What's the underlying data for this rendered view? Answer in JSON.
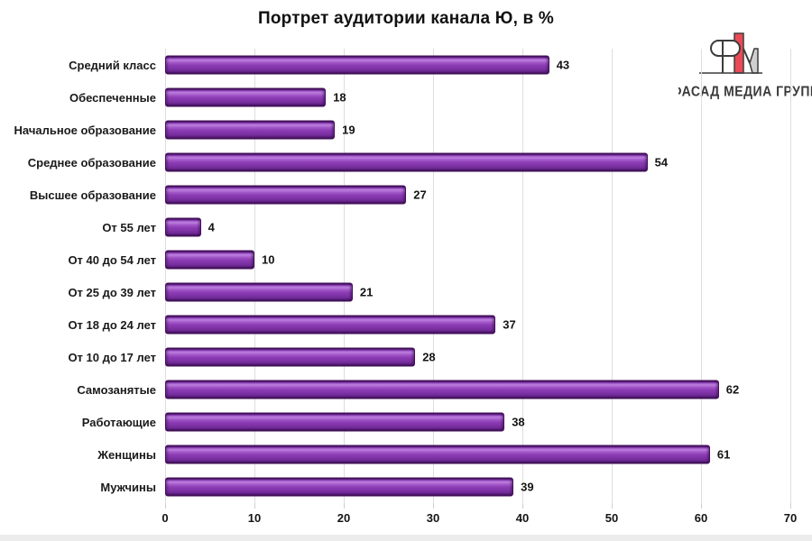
{
  "chart": {
    "title": "Портрет аудитории канала Ю, в %"
  },
  "logo": {
    "text": "ФАСАД МЕДИА ГРУПП",
    "mark_icon": "fm-monogram-icon",
    "red": "#ea4a56",
    "gray": "#cfcfcf",
    "outline": "#3c3c3c"
  },
  "colors": {
    "bar_main": "#8c3cb4",
    "bar_highlight": "#bd7fdd",
    "bar_dark": "#3f1157",
    "gridline": "#dedede",
    "text": "#1a1a1a"
  },
  "chart_data": {
    "type": "bar",
    "orientation": "horizontal",
    "title": "Портрет аудитории канала Ю, в %",
    "categories": [
      "Средний класс",
      "Обеспеченные",
      "Начальное образование",
      "Среднее образование",
      "Высшее образование",
      "От 55 лет",
      "От 40 до 54 лет",
      "От 25 до 39 лет",
      "От 18 до 24 лет",
      "От 10 до 17 лет",
      "Самозанятые",
      "Работающие",
      "Женщины",
      "Мужчины"
    ],
    "values": [
      43,
      18,
      19,
      54,
      27,
      4,
      10,
      21,
      37,
      28,
      62,
      38,
      61,
      39
    ],
    "xlabel": "",
    "ylabel": "",
    "xlim": [
      0,
      70
    ],
    "x_ticks": [
      0,
      10,
      20,
      30,
      40,
      50,
      60,
      70
    ],
    "grid": "vertical",
    "legend": "none",
    "value_labels": true
  }
}
